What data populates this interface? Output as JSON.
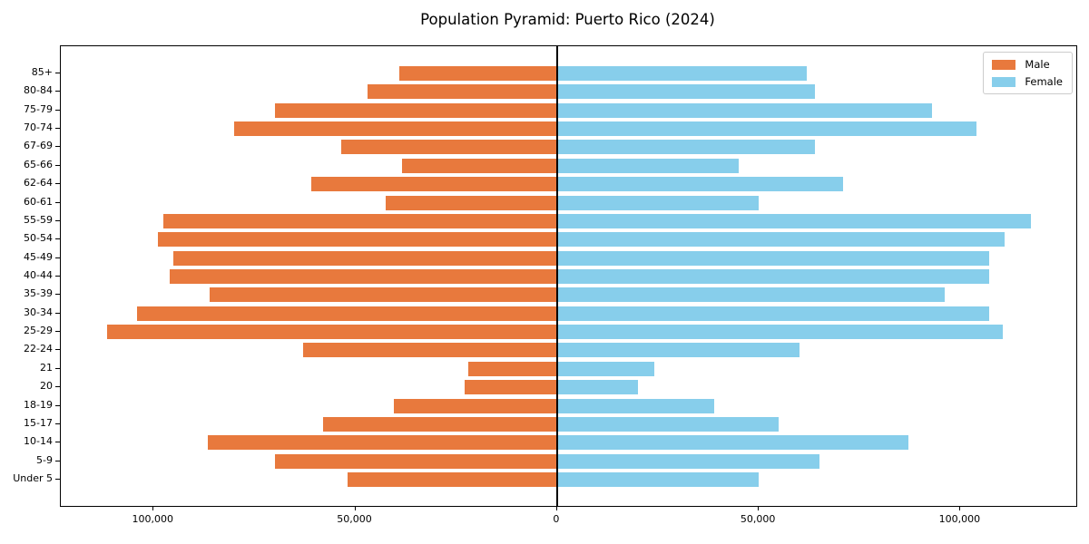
{
  "title": "Population Pyramid: Puerto Rico (2024)",
  "legend": {
    "male_label": "Male",
    "female_label": "Female",
    "position": "upper right"
  },
  "colors": {
    "male": "#e8793d",
    "female": "#87ceeb",
    "axis": "#000000",
    "legend_border": "#cccccc",
    "background": "#ffffff"
  },
  "chart_data": {
    "type": "bar",
    "subtype": "population-pyramid",
    "orientation": "horizontal",
    "title": "Population Pyramid: Puerto Rico (2024)",
    "xlabel": "",
    "ylabel": "",
    "grid": false,
    "legend_position": "upper right",
    "categories_top_to_bottom": [
      "85+",
      "80-84",
      "75-79",
      "70-74",
      "67-69",
      "65-66",
      "62-64",
      "60-61",
      "55-59",
      "50-54",
      "45-49",
      "40-44",
      "35-39",
      "30-34",
      "25-29",
      "22-24",
      "21",
      "20",
      "18-19",
      "15-17",
      "10-14",
      "5-9",
      "Under 5"
    ],
    "series": [
      {
        "name": "Male",
        "side": "left",
        "color": "#e8793d",
        "values": [
          39000,
          47000,
          70000,
          80000,
          53500,
          38500,
          61000,
          42500,
          97500,
          99000,
          95000,
          96000,
          86000,
          104000,
          111500,
          63000,
          22000,
          23000,
          40500,
          58000,
          86500,
          70000,
          52000
        ]
      },
      {
        "name": "Female",
        "side": "right",
        "color": "#87ceeb",
        "values": [
          62000,
          64000,
          93000,
          104000,
          64000,
          45000,
          71000,
          50000,
          117500,
          111000,
          107000,
          107000,
          96000,
          107000,
          110500,
          60000,
          24000,
          20000,
          39000,
          55000,
          87000,
          65000,
          50000
        ]
      }
    ],
    "xlim": [
      -123000,
      128700
    ],
    "x_ticks": [
      {
        "value": -100000,
        "label": "100,000"
      },
      {
        "value": -50000,
        "label": "50,000"
      },
      {
        "value": 0,
        "label": "0"
      },
      {
        "value": 50000,
        "label": "50,000"
      },
      {
        "value": 100000,
        "label": "100,000"
      }
    ]
  }
}
